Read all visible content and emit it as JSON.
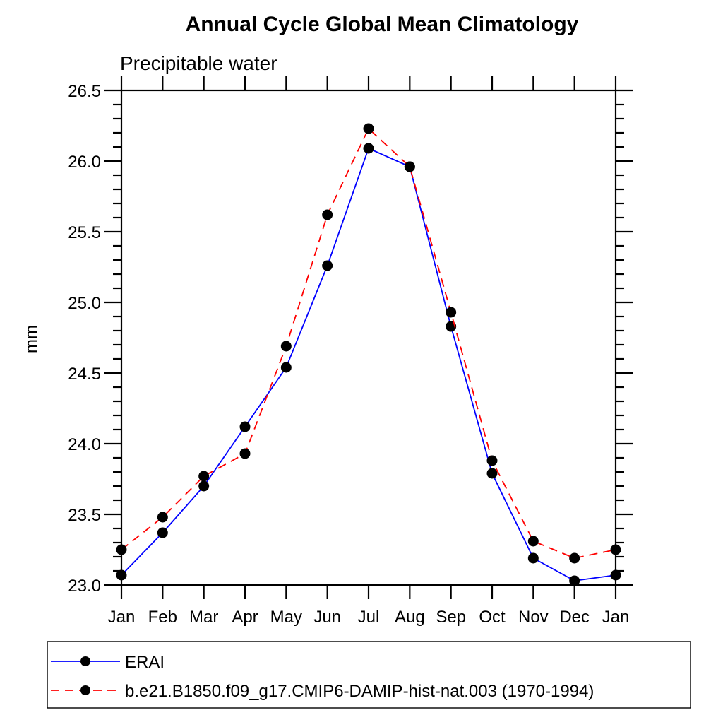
{
  "page": {
    "background": "#ffffff"
  },
  "chart_data": {
    "type": "line",
    "title": "Annual Cycle Global Mean Climatology",
    "subtitle": "Precipitable water",
    "ylabel": "mm",
    "categories": [
      "Jan",
      "Feb",
      "Mar",
      "Apr",
      "May",
      "Jun",
      "Jul",
      "Aug",
      "Sep",
      "Oct",
      "Nov",
      "Dec",
      "Jan"
    ],
    "ylim": [
      23.0,
      26.5
    ],
    "ytick_step": 0.5,
    "yminor_step": 0.1,
    "ytick_labels": [
      "23.0",
      "23.5",
      "24.0",
      "24.5",
      "25.0",
      "25.5",
      "26.0",
      "26.5"
    ],
    "grid": false,
    "axis_color": "#000000",
    "marker_shape": "filled-circle",
    "legend_position": "bottom-left",
    "series": [
      {
        "name": "ERAI",
        "line_color": "#0000ff",
        "line_style": "solid",
        "marker_color": "#000000",
        "values": [
          23.07,
          23.37,
          23.7,
          24.12,
          24.54,
          25.26,
          26.09,
          25.96,
          24.83,
          23.79,
          23.19,
          23.03,
          23.07
        ]
      },
      {
        "name": "b.e21.B1850.f09_g17.CMIP6-DAMIP-hist-nat.003 (1970-1994)",
        "line_color": "#ff0000",
        "line_style": "dashed",
        "marker_color": "#000000",
        "values": [
          23.25,
          23.48,
          23.77,
          23.93,
          24.69,
          25.62,
          26.23,
          25.96,
          24.93,
          23.88,
          23.31,
          23.19,
          23.25
        ]
      }
    ]
  }
}
